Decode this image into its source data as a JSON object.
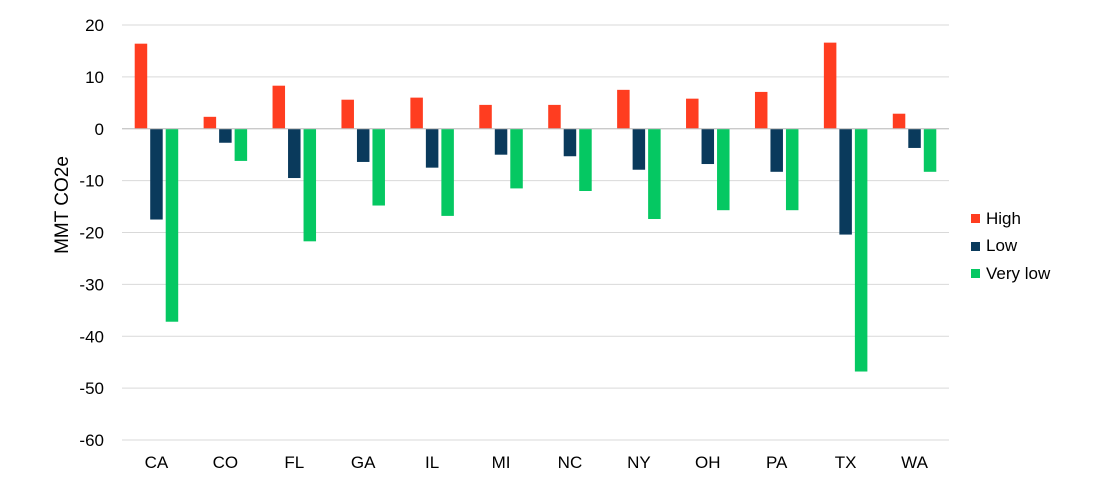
{
  "chart_data": {
    "type": "bar",
    "title": "",
    "xlabel": "",
    "ylabel": "MMT CO2e",
    "ylim": [
      -60,
      20
    ],
    "yticks": [
      20,
      10,
      0,
      -10,
      -20,
      -30,
      -40,
      -50,
      -60
    ],
    "grid": true,
    "legend_position": "right",
    "categories": [
      "CA",
      "CO",
      "FL",
      "GA",
      "IL",
      "MI",
      "NC",
      "NY",
      "OH",
      "PA",
      "TX",
      "WA"
    ],
    "series": [
      {
        "name": "High",
        "color": "#FF3D20",
        "values": [
          16.4,
          2.3,
          8.3,
          5.6,
          6.0,
          4.6,
          4.6,
          7.5,
          5.8,
          7.1,
          16.6,
          2.9
        ]
      },
      {
        "name": "Low",
        "color": "#0A3A5C",
        "values": [
          -17.5,
          -2.7,
          -9.5,
          -6.4,
          -7.5,
          -5.0,
          -5.3,
          -7.9,
          -6.8,
          -8.3,
          -20.4,
          -3.7
        ]
      },
      {
        "name": "Very low",
        "color": "#05C862",
        "values": [
          -37.2,
          -6.2,
          -21.7,
          -14.8,
          -16.8,
          -11.5,
          -12.0,
          -17.4,
          -15.7,
          -15.7,
          -46.8,
          -8.3
        ]
      }
    ]
  }
}
